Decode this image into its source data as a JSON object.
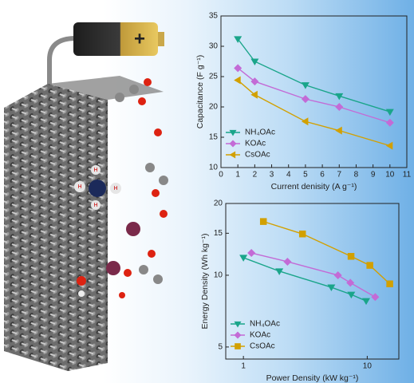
{
  "illustration": {
    "battery_sign": "+",
    "atom_labels": [
      "H",
      "H",
      "H",
      "H"
    ]
  },
  "chart_data": [
    {
      "type": "line",
      "xlabel": "Current denisity (A g⁻¹)",
      "ylabel": "Capacitance (F g⁻¹)",
      "xlim": [
        0,
        11
      ],
      "xticks": [
        0,
        1,
        2,
        3,
        4,
        5,
        6,
        7,
        8,
        9,
        10,
        11
      ],
      "ylim": [
        10,
        35
      ],
      "yticks": [
        10,
        15,
        20,
        25,
        30,
        35
      ],
      "legend": "lower-left",
      "series": [
        {
          "name": "NH₄OAc",
          "color": "#1aa58a",
          "marker": "triangle-down",
          "x": [
            1,
            2,
            5,
            7,
            10
          ],
          "values": [
            31.2,
            27.5,
            23.6,
            21.8,
            19.2
          ]
        },
        {
          "name": "KOAc",
          "color": "#c36bd6",
          "marker": "diamond",
          "x": [
            1,
            2,
            5,
            7,
            10
          ],
          "values": [
            26.4,
            24.2,
            21.3,
            20.0,
            17.4
          ]
        },
        {
          "name": "CsOAc",
          "color": "#d2a000",
          "marker": "triangle-left",
          "x": [
            1,
            2,
            5,
            7,
            10
          ],
          "values": [
            24.4,
            22.0,
            17.6,
            16.1,
            13.6
          ]
        }
      ]
    },
    {
      "type": "line",
      "xlabel": "Power Density (kW kg⁻¹)",
      "ylabel": "Energy Density (Wh kg⁻¹)",
      "xscale": "log",
      "yscale": "log",
      "xlim": [
        0.72,
        18
      ],
      "xticks": [
        1,
        10
      ],
      "ylim": [
        4.45,
        20
      ],
      "yticks": [
        5,
        10,
        15,
        20
      ],
      "legend": "lower-left",
      "series": [
        {
          "name": "NH₄OAc",
          "color": "#1aa58a",
          "marker": "triangle-down",
          "x": [
            1.0,
            1.95,
            5.13,
            7.43,
            9.8
          ],
          "values": [
            11.85,
            10.4,
            8.9,
            8.3,
            7.8
          ]
        },
        {
          "name": "KOAc",
          "color": "#c36bd6",
          "marker": "diamond",
          "x": [
            1.16,
            2.27,
            5.8,
            7.3,
            11.6
          ],
          "values": [
            12.4,
            11.4,
            10.0,
            9.3,
            8.1
          ]
        },
        {
          "name": "CsOAc",
          "color": "#d2a000",
          "marker": "square",
          "x": [
            1.45,
            3.0,
            7.4,
            10.5,
            15.2
          ],
          "values": [
            16.8,
            14.9,
            12.0,
            11.0,
            9.2
          ]
        }
      ]
    }
  ]
}
